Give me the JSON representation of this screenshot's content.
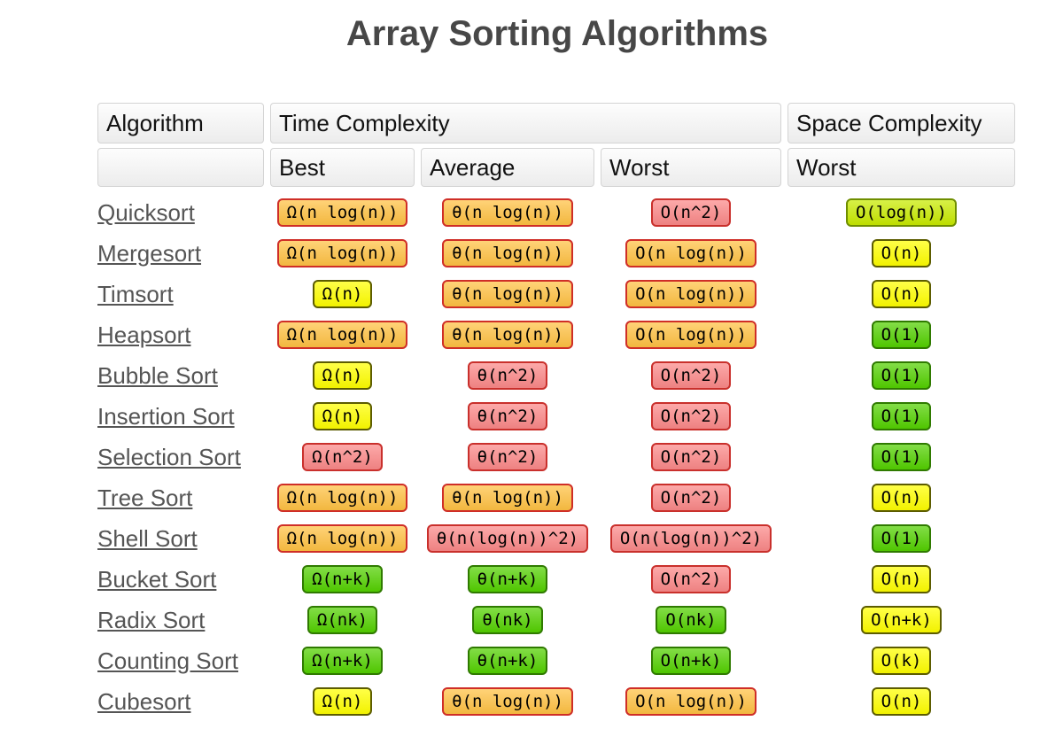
{
  "title": "Array Sorting Algorithms",
  "table": {
    "col_headers": {
      "algorithm": "Algorithm",
      "time": "Time Complexity",
      "space": "Space Complexity"
    },
    "sub_headers": {
      "best": "Best",
      "average": "Average",
      "worst": "Worst",
      "space_worst": "Worst"
    },
    "rows": [
      {
        "name": "Quicksort",
        "best": {
          "text": "Ω(n log(n))",
          "level": "bad"
        },
        "average": {
          "text": "θ(n log(n))",
          "level": "bad"
        },
        "worst": {
          "text": "O(n^2)",
          "level": "horrible"
        },
        "space": {
          "text": "O(log(n))",
          "level": "good"
        }
      },
      {
        "name": "Mergesort",
        "best": {
          "text": "Ω(n log(n))",
          "level": "bad"
        },
        "average": {
          "text": "θ(n log(n))",
          "level": "bad"
        },
        "worst": {
          "text": "O(n log(n))",
          "level": "bad"
        },
        "space": {
          "text": "O(n)",
          "level": "fair"
        }
      },
      {
        "name": "Timsort",
        "best": {
          "text": "Ω(n)",
          "level": "fair"
        },
        "average": {
          "text": "θ(n log(n))",
          "level": "bad"
        },
        "worst": {
          "text": "O(n log(n))",
          "level": "bad"
        },
        "space": {
          "text": "O(n)",
          "level": "fair"
        }
      },
      {
        "name": "Heapsort",
        "best": {
          "text": "Ω(n log(n))",
          "level": "bad"
        },
        "average": {
          "text": "θ(n log(n))",
          "level": "bad"
        },
        "worst": {
          "text": "O(n log(n))",
          "level": "bad"
        },
        "space": {
          "text": "O(1)",
          "level": "excellent"
        }
      },
      {
        "name": "Bubble Sort",
        "best": {
          "text": "Ω(n)",
          "level": "fair"
        },
        "average": {
          "text": "θ(n^2)",
          "level": "horrible"
        },
        "worst": {
          "text": "O(n^2)",
          "level": "horrible"
        },
        "space": {
          "text": "O(1)",
          "level": "excellent"
        }
      },
      {
        "name": "Insertion Sort",
        "best": {
          "text": "Ω(n)",
          "level": "fair"
        },
        "average": {
          "text": "θ(n^2)",
          "level": "horrible"
        },
        "worst": {
          "text": "O(n^2)",
          "level": "horrible"
        },
        "space": {
          "text": "O(1)",
          "level": "excellent"
        }
      },
      {
        "name": "Selection Sort",
        "best": {
          "text": "Ω(n^2)",
          "level": "horrible"
        },
        "average": {
          "text": "θ(n^2)",
          "level": "horrible"
        },
        "worst": {
          "text": "O(n^2)",
          "level": "horrible"
        },
        "space": {
          "text": "O(1)",
          "level": "excellent"
        }
      },
      {
        "name": "Tree Sort",
        "best": {
          "text": "Ω(n log(n))",
          "level": "bad"
        },
        "average": {
          "text": "θ(n log(n))",
          "level": "bad"
        },
        "worst": {
          "text": "O(n^2)",
          "level": "horrible"
        },
        "space": {
          "text": "O(n)",
          "level": "fair"
        }
      },
      {
        "name": "Shell Sort",
        "best": {
          "text": "Ω(n log(n))",
          "level": "bad"
        },
        "average": {
          "text": "θ(n(log(n))^2)",
          "level": "horrible"
        },
        "worst": {
          "text": "O(n(log(n))^2)",
          "level": "horrible"
        },
        "space": {
          "text": "O(1)",
          "level": "excellent"
        }
      },
      {
        "name": "Bucket Sort",
        "best": {
          "text": "Ω(n+k)",
          "level": "excellent"
        },
        "average": {
          "text": "θ(n+k)",
          "level": "excellent"
        },
        "worst": {
          "text": "O(n^2)",
          "level": "horrible"
        },
        "space": {
          "text": "O(n)",
          "level": "fair"
        }
      },
      {
        "name": "Radix Sort",
        "best": {
          "text": "Ω(nk)",
          "level": "excellent"
        },
        "average": {
          "text": "θ(nk)",
          "level": "excellent"
        },
        "worst": {
          "text": "O(nk)",
          "level": "excellent"
        },
        "space": {
          "text": "O(n+k)",
          "level": "fair"
        }
      },
      {
        "name": "Counting Sort",
        "best": {
          "text": "Ω(n+k)",
          "level": "excellent"
        },
        "average": {
          "text": "θ(n+k)",
          "level": "excellent"
        },
        "worst": {
          "text": "O(n+k)",
          "level": "excellent"
        },
        "space": {
          "text": "O(k)",
          "level": "fair"
        }
      },
      {
        "name": "Cubesort",
        "best": {
          "text": "Ω(n)",
          "level": "fair"
        },
        "average": {
          "text": "θ(n log(n))",
          "level": "bad"
        },
        "worst": {
          "text": "O(n log(n))",
          "level": "bad"
        },
        "space": {
          "text": "O(n)",
          "level": "fair"
        }
      }
    ]
  },
  "palette": {
    "excellent": {
      "bg": "#53d000",
      "border": "#2f7a00"
    },
    "good": {
      "bg": "#c8ea00",
      "border": "#6f8e00"
    },
    "fair": {
      "bg": "#ffff00",
      "border": "#5c5c00"
    },
    "bad": {
      "bg": "#ffc143",
      "border": "#cf2e27"
    },
    "horrible": {
      "bg": "#fb8888",
      "border": "#c9302c"
    }
  }
}
